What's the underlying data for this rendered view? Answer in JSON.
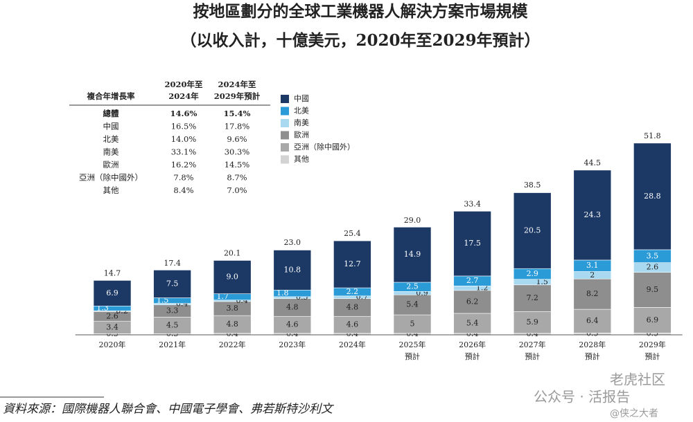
{
  "chart_data": {
    "type": "stacked_bar",
    "title": "按地區劃分的全球工業機器人解決方案市場規模",
    "subtitle": "（以收入計，十億美元，2020年至2029年預計）",
    "categories": [
      "2020年",
      "2021年",
      "2022年",
      "2023年",
      "2024年",
      "2025年",
      "2026年",
      "2027年",
      "2028年",
      "2029年"
    ],
    "category_notes": [
      null,
      null,
      null,
      null,
      null,
      "預計",
      "預計",
      "預計",
      "預計",
      "預計"
    ],
    "series": [
      {
        "name": "其他",
        "color": "#d3d3d3",
        "values": [
          0.3,
          0.3,
          0.4,
          0.4,
          0.4,
          0.4,
          0.4,
          0.4,
          0.5,
          0.5
        ]
      },
      {
        "name": "亞洲（除中國外）",
        "color": "#a8a8a8",
        "values": [
          3.4,
          4.5,
          4.8,
          4.6,
          4.6,
          5.0,
          5.4,
          5.9,
          6.4,
          6.9
        ]
      },
      {
        "name": "歐洲",
        "color": "#8e8e8e",
        "values": [
          2.6,
          3.3,
          3.8,
          4.8,
          4.8,
          5.4,
          6.2,
          7.2,
          8.2,
          9.5
        ]
      },
      {
        "name": "南美",
        "color": "#a9d9f0",
        "values": [
          0.2,
          0.4,
          0.4,
          0.5,
          0.7,
          0.9,
          1.2,
          1.5,
          2.0,
          2.6
        ]
      },
      {
        "name": "北美",
        "color": "#2b9bd8",
        "values": [
          1.3,
          1.5,
          1.7,
          1.8,
          2.2,
          2.5,
          2.7,
          2.9,
          3.1,
          3.5
        ]
      },
      {
        "name": "中國",
        "color": "#1c3966",
        "values": [
          6.9,
          7.5,
          9.0,
          10.8,
          12.7,
          14.9,
          17.5,
          20.5,
          24.3,
          28.8
        ],
        "value_labels": [
          "6.9",
          "7.5",
          "9.0",
          "10.8",
          "12.7",
          "14.9",
          "17.5",
          "20.5",
          "24.3",
          "28.8"
        ]
      }
    ],
    "totals": {
      "values": [
        14.7,
        17.4,
        20.1,
        23.0,
        25.4,
        29.0,
        33.4,
        38.5,
        44.5,
        51.8
      ],
      "value_labels": [
        "14.7",
        "17.4",
        "20.1",
        "23.0",
        "25.4",
        "29.0",
        "33.4",
        "38.5",
        "44.5",
        "51.8"
      ]
    },
    "legend_order": [
      5,
      4,
      3,
      2,
      1,
      0
    ],
    "cagr_table": {
      "header": [
        "複合年增長率",
        [
          "2020年至",
          "2024年"
        ],
        [
          "2024年至",
          "2029年預計"
        ]
      ],
      "rows": [
        [
          "總體",
          "14.6%",
          "15.4%"
        ],
        [
          "中國",
          "16.5%",
          "17.8%"
        ],
        [
          "北美",
          "14.0%",
          "9.6%"
        ],
        [
          "南美",
          "33.1%",
          "30.3%"
        ],
        [
          "歐洲",
          "16.2%",
          "14.5%"
        ],
        [
          "亞洲（除中國外）",
          "7.8%",
          "8.7%"
        ],
        [
          "其他",
          "8.4%",
          "7.0%"
        ]
      ]
    },
    "source": "資料來源：國際機器人聯合會、中國電子學會、弗若斯特沙利文",
    "watermark": [
      "公众号 · 活报告",
      "老虎社区",
      "@侠之大者"
    ]
  }
}
